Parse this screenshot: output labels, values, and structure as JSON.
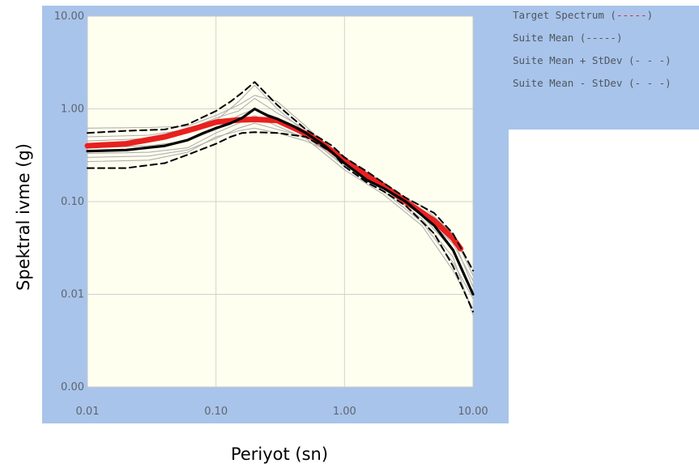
{
  "chart_data": {
    "type": "line",
    "title": "",
    "xlabel": "Periyot (sn)",
    "ylabel": "Spektral ivme (g)",
    "xscale": "log",
    "yscale": "log",
    "xlim": [
      0.01,
      10
    ],
    "ylim": [
      0.001,
      10
    ],
    "grid": true,
    "legend_position": "right",
    "x_ticks": [
      {
        "value": 0.01,
        "label": "0.01"
      },
      {
        "value": 0.1,
        "label": "0.10"
      },
      {
        "value": 1,
        "label": "1.00"
      },
      {
        "value": 10,
        "label": "10.00"
      }
    ],
    "y_ticks": [
      {
        "value": 10,
        "label": "10.00"
      },
      {
        "value": 1,
        "label": "1.00"
      },
      {
        "value": 0.1,
        "label": "0.10"
      },
      {
        "value": 0.01,
        "label": "0.01"
      },
      {
        "value": 0.001,
        "label": "0.00"
      }
    ],
    "legend": [
      {
        "label": "Target Spectrum (",
        "marker": "-----",
        "marker_color": "#e02020",
        "close": ")"
      },
      {
        "label": "Suite Mean (",
        "marker": "-----",
        "marker_color": "#505560",
        "close": ")"
      },
      {
        "label": "Suite Mean + StDev (",
        "marker": "- - -",
        "marker_color": "#505560",
        "close": ")"
      },
      {
        "label": "Suite Mean - StDev (",
        "marker": "- - -",
        "marker_color": "#505560",
        "close": ")"
      }
    ],
    "series": [
      {
        "style": "target",
        "color": "#e8211f",
        "x": [
          0.01,
          0.02,
          0.04,
          0.07,
          0.1,
          0.15,
          0.2,
          0.3,
          0.45,
          0.6,
          1.0,
          1.5,
          2.0,
          3.0,
          5.0,
          7.0,
          8.0
        ],
        "y": [
          0.4,
          0.42,
          0.5,
          0.62,
          0.72,
          0.76,
          0.77,
          0.75,
          0.58,
          0.47,
          0.28,
          0.19,
          0.15,
          0.1,
          0.062,
          0.04,
          0.031
        ]
      },
      {
        "style": "mean",
        "color": "#000000",
        "x": [
          0.01,
          0.02,
          0.04,
          0.06,
          0.08,
          0.1,
          0.13,
          0.16,
          0.2,
          0.25,
          0.3,
          0.4,
          0.5,
          0.7,
          1.0,
          1.5,
          2.0,
          3.0,
          5.0,
          7.0,
          10.0
        ],
        "y": [
          0.35,
          0.36,
          0.4,
          0.46,
          0.55,
          0.62,
          0.7,
          0.8,
          1.0,
          0.85,
          0.78,
          0.65,
          0.55,
          0.4,
          0.26,
          0.17,
          0.14,
          0.1,
          0.055,
          0.03,
          0.01
        ]
      },
      {
        "style": "stdev",
        "color": "#000000",
        "x": [
          0.01,
          0.02,
          0.04,
          0.06,
          0.1,
          0.13,
          0.16,
          0.2,
          0.3,
          0.5,
          0.8,
          1.0,
          1.5,
          2.0,
          3.0,
          5.0,
          7.0,
          10.0
        ],
        "y": [
          0.55,
          0.58,
          0.6,
          0.68,
          0.95,
          1.2,
          1.5,
          1.95,
          1.1,
          0.6,
          0.4,
          0.3,
          0.21,
          0.16,
          0.11,
          0.075,
          0.045,
          0.018
        ]
      },
      {
        "style": "stdev",
        "color": "#000000",
        "x": [
          0.01,
          0.02,
          0.04,
          0.06,
          0.1,
          0.13,
          0.16,
          0.2,
          0.3,
          0.5,
          0.8,
          1.0,
          1.5,
          2.0,
          3.0,
          5.0,
          7.0,
          10.0
        ],
        "y": [
          0.23,
          0.23,
          0.26,
          0.32,
          0.42,
          0.5,
          0.55,
          0.56,
          0.55,
          0.5,
          0.34,
          0.24,
          0.16,
          0.13,
          0.09,
          0.045,
          0.02,
          0.0065
        ]
      },
      {
        "style": "record",
        "color": "#b0b0b0",
        "x": [
          0.01,
          0.03,
          0.06,
          0.1,
          0.15,
          0.2,
          0.3,
          0.5,
          1.0,
          2.0,
          4.0,
          7.0,
          10.0
        ],
        "y": [
          0.45,
          0.48,
          0.55,
          0.75,
          1.2,
          1.8,
          1.0,
          0.55,
          0.28,
          0.15,
          0.08,
          0.04,
          0.012
        ]
      },
      {
        "style": "record",
        "color": "#b0b0b0",
        "x": [
          0.01,
          0.03,
          0.06,
          0.1,
          0.15,
          0.2,
          0.3,
          0.5,
          1.0,
          2.0,
          4.0,
          7.0,
          10.0
        ],
        "y": [
          0.3,
          0.31,
          0.36,
          0.48,
          0.62,
          0.7,
          0.6,
          0.5,
          0.25,
          0.14,
          0.065,
          0.025,
          0.006
        ]
      },
      {
        "style": "record",
        "color": "#b0b0b0",
        "x": [
          0.01,
          0.03,
          0.06,
          0.1,
          0.15,
          0.2,
          0.3,
          0.5,
          1.0,
          2.0,
          4.0,
          7.0,
          10.0
        ],
        "y": [
          0.5,
          0.52,
          0.6,
          0.8,
          0.95,
          1.3,
          0.9,
          0.6,
          0.27,
          0.15,
          0.075,
          0.035,
          0.014
        ]
      },
      {
        "style": "record",
        "color": "#b0b0b0",
        "x": [
          0.01,
          0.03,
          0.06,
          0.1,
          0.15,
          0.2,
          0.3,
          0.5,
          1.0,
          2.0,
          4.0,
          7.0,
          10.0
        ],
        "y": [
          0.27,
          0.28,
          0.34,
          0.5,
          0.58,
          0.62,
          0.55,
          0.45,
          0.3,
          0.13,
          0.06,
          0.022,
          0.009
        ]
      },
      {
        "style": "record",
        "color": "#b0b0b0",
        "x": [
          0.01,
          0.03,
          0.06,
          0.1,
          0.15,
          0.2,
          0.3,
          0.5,
          1.0,
          2.0,
          4.0,
          7.0,
          10.0
        ],
        "y": [
          0.38,
          0.4,
          0.45,
          0.6,
          0.85,
          1.0,
          0.8,
          0.52,
          0.24,
          0.16,
          0.07,
          0.03,
          0.01
        ]
      },
      {
        "style": "record",
        "color": "#b0b0b0",
        "x": [
          0.01,
          0.03,
          0.06,
          0.1,
          0.15,
          0.2,
          0.3,
          0.5,
          1.0,
          2.0,
          4.0,
          7.0,
          10.0
        ],
        "y": [
          0.62,
          0.63,
          0.65,
          0.85,
          1.1,
          1.4,
          1.2,
          0.65,
          0.26,
          0.14,
          0.09,
          0.045,
          0.016
        ]
      },
      {
        "style": "record",
        "color": "#b0b0b0",
        "x": [
          0.01,
          0.03,
          0.06,
          0.1,
          0.15,
          0.2,
          0.3,
          0.5,
          1.0,
          2.0,
          4.0,
          7.0,
          10.0
        ],
        "y": [
          0.33,
          0.34,
          0.38,
          0.55,
          0.7,
          0.85,
          0.65,
          0.48,
          0.22,
          0.12,
          0.055,
          0.018,
          0.007
        ]
      }
    ]
  }
}
